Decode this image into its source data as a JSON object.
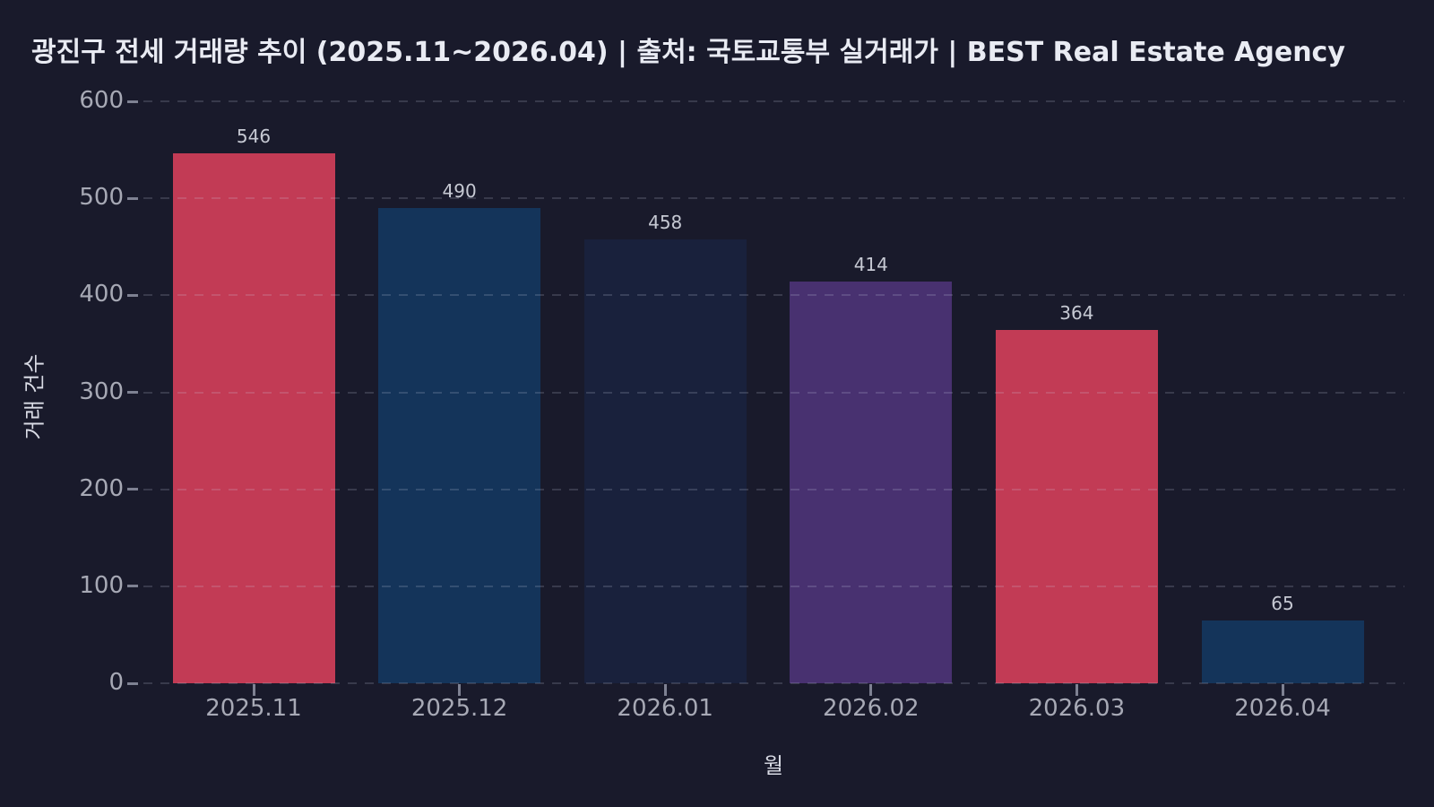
{
  "header": {
    "title": "광진구 전세 거래량 추이 (2025.11~2026.04) | 출처: 국토교통부 실거래가 | BEST Real Estate Agency"
  },
  "chart_data": {
    "type": "bar",
    "title": "광진구 전세 거래량 추이 (2025.11~2026.04) | 출처: 국토교통부 실거래가 | BEST Real Estate Agency",
    "categories": [
      "2025.11",
      "2025.12",
      "2026.01",
      "2026.02",
      "2026.03",
      "2026.04"
    ],
    "values": [
      546,
      490,
      458,
      414,
      364,
      65
    ],
    "bar_colors": [
      "#c23b55",
      "#14345a",
      "#19213c",
      "#483170",
      "#c23b55",
      "#14345a"
    ],
    "xlabel": "월",
    "ylabel": "거래 건수",
    "ylim": [
      0,
      600
    ],
    "yticks": [
      0,
      100,
      200,
      300,
      400,
      500,
      600
    ],
    "grid": "dashed-horizontal",
    "legend": "none",
    "value_labels_shown": true,
    "colors": {
      "background": "#191a2b",
      "title_text": "#e9ebf3",
      "tick_text": "#a7a9b5",
      "value_label_text": "#c6c9d3",
      "axis_label_text": "#d9dbe5",
      "gridline": "rgba(208,214,235,0.17)",
      "red_bar": "#c23b55",
      "navy_bar": "#14345a",
      "dark_navy_bar": "#19213c",
      "purple_bar": "#483170"
    }
  }
}
